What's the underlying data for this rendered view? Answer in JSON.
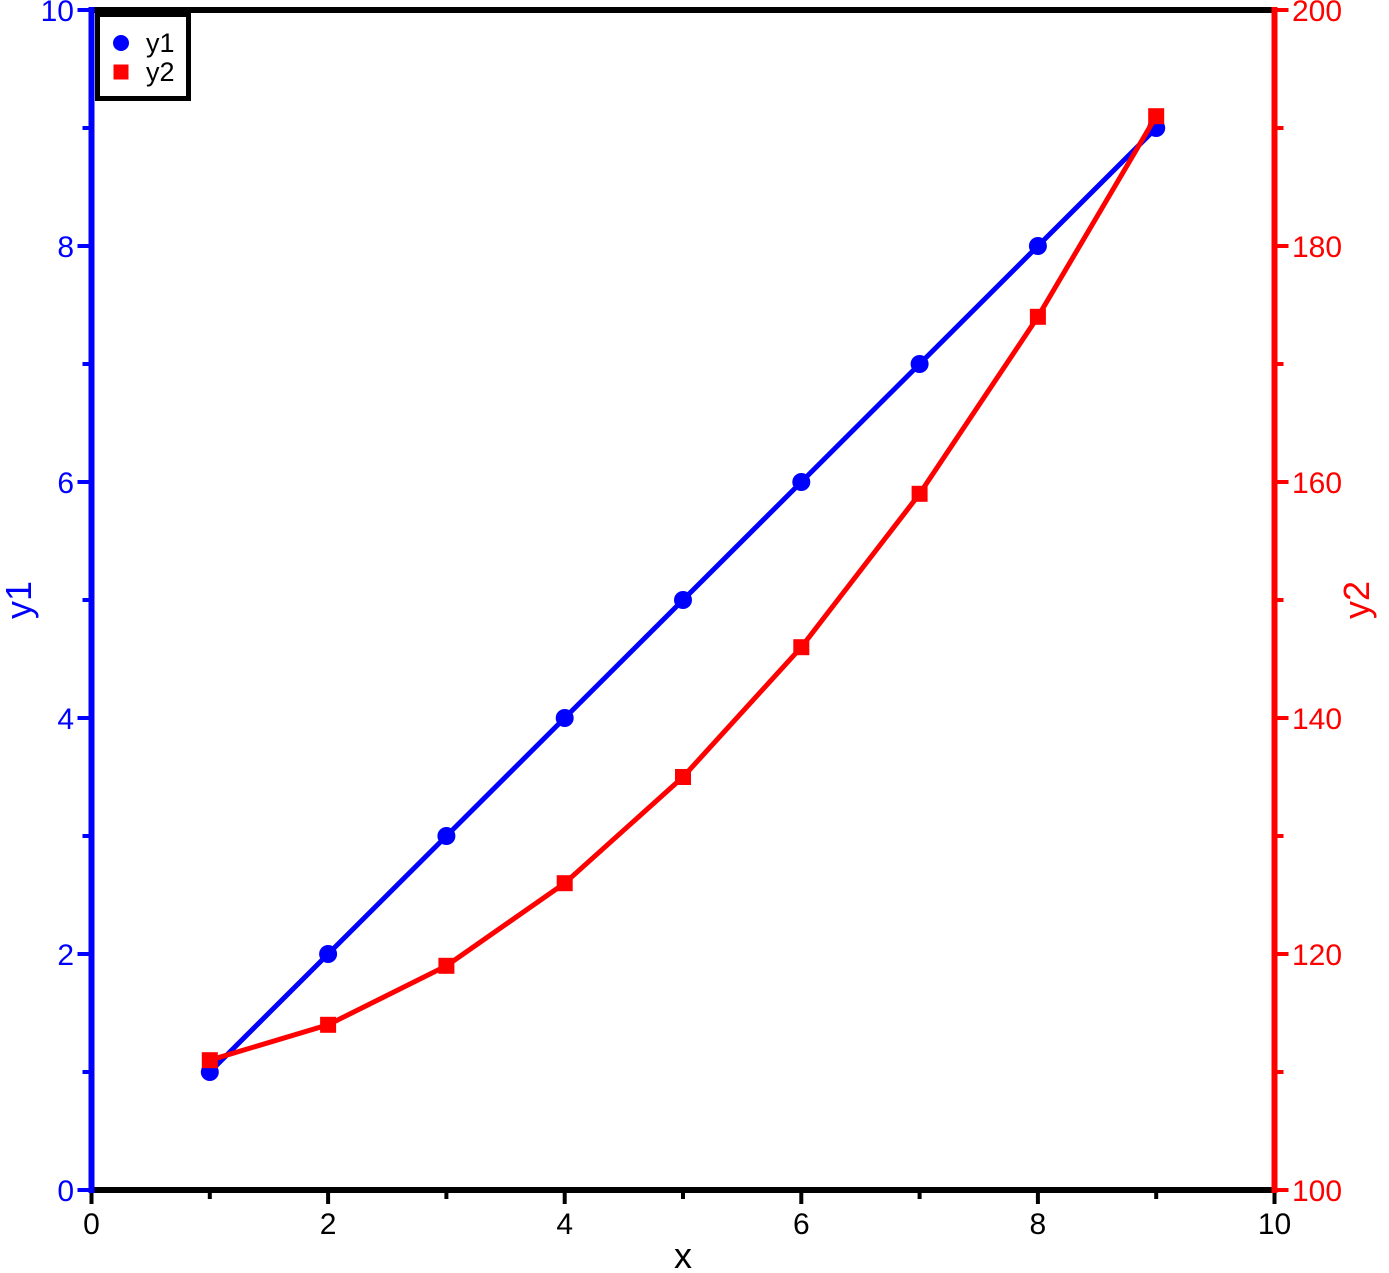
{
  "chart_data": {
    "type": "line",
    "title": "",
    "xlabel": "x",
    "ylabel_left": "y1",
    "ylabel_right": "y2",
    "xlim": [
      0,
      10
    ],
    "ylim_left": [
      0,
      10
    ],
    "ylim_right": [
      100,
      200
    ],
    "grid": false,
    "background": "#ffffff",
    "x": [
      1,
      2,
      3,
      4,
      5,
      6,
      7,
      8,
      9
    ],
    "series": [
      {
        "name": "y1",
        "axis": "left",
        "color": "#0000ff",
        "marker": "circle",
        "values": [
          1,
          2,
          3,
          4,
          5,
          6,
          7,
          8,
          9
        ]
      },
      {
        "name": "y2",
        "axis": "right",
        "color": "#ff0000",
        "marker": "square",
        "values": [
          111,
          114,
          119,
          126,
          135,
          146,
          159,
          174,
          191
        ]
      }
    ],
    "axes": {
      "bottom": {
        "color": "#000000",
        "label": "x",
        "label_color": "#000000",
        "ticks_major": [
          0,
          2,
          4,
          6,
          8,
          10
        ],
        "ticks_minor": [
          1,
          3,
          5,
          7,
          9
        ]
      },
      "left": {
        "color": "#0000ff",
        "label": "y1",
        "label_color": "#0000ff",
        "ticks_major": [
          0,
          2,
          4,
          6,
          8,
          10
        ],
        "ticks_minor": [
          1,
          3,
          5,
          7,
          9
        ]
      },
      "right": {
        "color": "#ff0000",
        "label": "y2",
        "label_color": "#ff0000",
        "ticks_major": [
          100,
          120,
          140,
          160,
          180,
          200
        ],
        "ticks_minor": [
          110,
          130,
          150,
          170,
          190
        ]
      },
      "top": {
        "color": "#000000"
      }
    },
    "legend": {
      "position": "top-left",
      "border_color": "#000000",
      "background": "#ffffff",
      "entries": [
        {
          "label": "y1",
          "marker": "circle",
          "color": "#0000ff"
        },
        {
          "label": "y2",
          "marker": "square",
          "color": "#ff0000"
        }
      ]
    }
  }
}
